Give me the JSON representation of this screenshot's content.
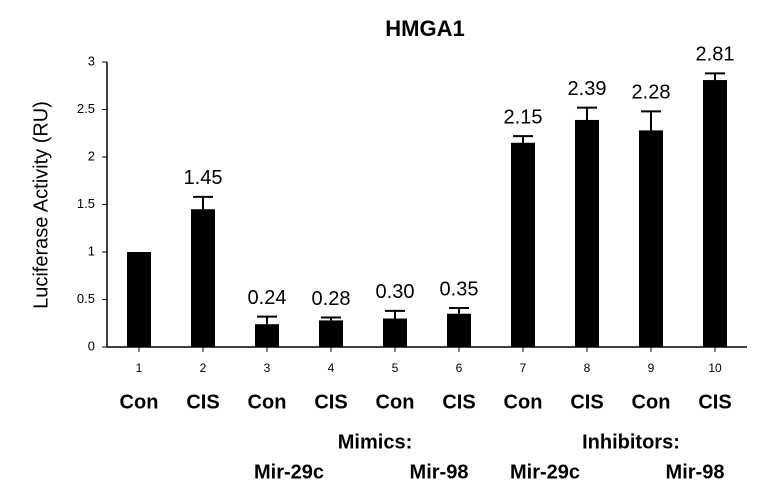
{
  "chart_data": {
    "type": "bar",
    "title": "HMGA1",
    "y_label": "Luciferase Activity (RU)",
    "categories": [
      "1",
      "2",
      "3",
      "4",
      "5",
      "6",
      "7",
      "8",
      "9",
      "10"
    ],
    "sublabels": [
      "Con",
      "CIS",
      "Con",
      "CIS",
      "Con",
      "CIS",
      "Con",
      "CIS",
      "Con",
      "CIS"
    ],
    "values": [
      1,
      1.45,
      0.24,
      0.28,
      0.3,
      0.35,
      2.15,
      2.39,
      2.28,
      2.81
    ],
    "value_labels": [
      null,
      "1.45",
      "0.24",
      "0.28",
      "0.30",
      "0.35",
      "2.15",
      "2.39",
      "2.28",
      "2.81"
    ],
    "errors": [
      0,
      0.13,
      0.08,
      0.03,
      0.08,
      0.06,
      0.07,
      0.13,
      0.2,
      0.07
    ],
    "color": "#000000",
    "ylim": [
      0,
      3
    ],
    "yticks": [
      0,
      0.5,
      1,
      1.5,
      2,
      2.5,
      3
    ],
    "groups": [
      {
        "title": "Mimics:",
        "items": [
          "Mir-29c",
          "Mir-98"
        ]
      },
      {
        "title": "Inhibitors:",
        "items": [
          "Mir-29c",
          "Mir-98"
        ]
      }
    ]
  }
}
